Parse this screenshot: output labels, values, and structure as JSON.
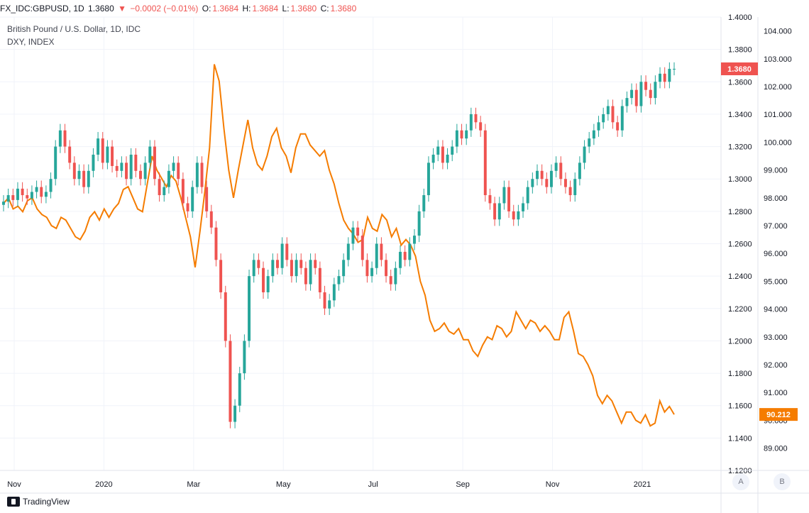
{
  "header": {
    "symbol": "FX_IDC:GBPUSD, 1D",
    "last": "1.3680",
    "arrow": "▼",
    "change": "−0.0002 (−0.01%)",
    "o_label": "O:",
    "o_value": "1.3684",
    "h_label": "H:",
    "h_value": "1.3684",
    "l_label": "L:",
    "l_value": "1.3680",
    "c_label": "C:",
    "c_value": "1.3680"
  },
  "legend": {
    "main": "British Pound / U.S. Dollar, 1D, IDC",
    "overlay": "DXY, INDEX"
  },
  "axis_buttons": {
    "a": "A",
    "b": "B"
  },
  "footer": {
    "brand": "TradingView"
  },
  "colors": {
    "up": "#26a69a",
    "down": "#ef5350",
    "dxy": "#f57c00",
    "grid": "#f0f3fa",
    "axis": "#787b86"
  },
  "chart_data": {
    "type": "line",
    "x_ticks": [
      "Nov",
      "2020",
      "Mar",
      "May",
      "Jul",
      "Sep",
      "Nov",
      "2021"
    ],
    "series": [
      {
        "name": "British Pound / U.S. Dollar, 1D, IDC",
        "style": "candlestick",
        "axis": "left-price-scale",
        "ylim": [
          1.12,
          1.4
        ],
        "y_ticks": [
          "1.4000",
          "1.3800",
          "1.3600",
          "1.3400",
          "1.3200",
          "1.3000",
          "1.2800",
          "1.2600",
          "1.2400",
          "1.2200",
          "1.2000",
          "1.1800",
          "1.1600",
          "1.1400",
          "1.1200"
        ],
        "values": [
          1.286,
          1.29,
          1.287,
          1.294,
          1.29,
          1.288,
          1.292,
          1.295,
          1.289,
          1.292,
          1.3,
          1.32,
          1.33,
          1.32,
          1.31,
          1.3,
          1.305,
          1.295,
          1.305,
          1.315,
          1.325,
          1.31,
          1.32,
          1.308,
          1.305,
          1.31,
          1.3,
          1.315,
          1.305,
          1.3,
          1.31,
          1.32,
          1.3,
          1.29,
          1.295,
          1.305,
          1.31,
          1.3,
          1.285,
          1.28,
          1.295,
          1.31,
          1.295,
          1.28,
          1.27,
          1.25,
          1.23,
          1.2,
          1.15,
          1.16,
          1.18,
          1.2,
          1.24,
          1.25,
          1.245,
          1.23,
          1.24,
          1.25,
          1.245,
          1.26,
          1.25,
          1.24,
          1.25,
          1.245,
          1.235,
          1.25,
          1.245,
          1.23,
          1.22,
          1.225,
          1.235,
          1.24,
          1.25,
          1.26,
          1.27,
          1.265,
          1.25,
          1.24,
          1.245,
          1.26,
          1.25,
          1.24,
          1.235,
          1.245,
          1.255,
          1.25,
          1.26,
          1.265,
          1.28,
          1.29,
          1.31,
          1.315,
          1.32,
          1.31,
          1.315,
          1.32,
          1.33,
          1.325,
          1.33,
          1.34,
          1.335,
          1.33,
          1.29,
          1.285,
          1.275,
          1.285,
          1.295,
          1.28,
          1.275,
          1.28,
          1.285,
          1.295,
          1.3,
          1.305,
          1.3,
          1.295,
          1.305,
          1.31,
          1.3,
          1.295,
          1.29,
          1.3,
          1.31,
          1.32,
          1.325,
          1.33,
          1.335,
          1.34,
          1.345,
          1.335,
          1.33,
          1.345,
          1.35,
          1.355,
          1.345,
          1.36,
          1.355,
          1.35,
          1.36,
          1.365,
          1.36,
          1.368,
          1.368
        ]
      },
      {
        "name": "DXY, INDEX",
        "style": "line",
        "axis": "right-scale",
        "ylim": [
          88.2,
          104.5
        ],
        "y_ticks": [
          "104.000",
          "103.000",
          "102.000",
          "101.000",
          "100.000",
          "99.000",
          "98.000",
          "97.000",
          "96.000",
          "95.000",
          "94.000",
          "93.000",
          "92.000",
          "91.000",
          "90.000",
          "89.000"
        ],
        "values": [
          97.8,
          98.0,
          97.6,
          97.7,
          97.5,
          97.9,
          98.0,
          97.6,
          97.4,
          97.3,
          97.0,
          96.9,
          97.3,
          97.2,
          96.9,
          96.6,
          96.5,
          96.8,
          97.3,
          97.5,
          97.2,
          97.6,
          97.3,
          97.6,
          97.8,
          98.3,
          98.4,
          98.0,
          97.6,
          97.5,
          98.5,
          99.5,
          99.0,
          98.7,
          98.4,
          98.8,
          98.6,
          98.0,
          97.3,
          96.6,
          95.5,
          96.8,
          98.2,
          99.8,
          102.8,
          102.2,
          100.5,
          99.0,
          98.0,
          99.0,
          99.9,
          100.8,
          99.8,
          99.2,
          99.0,
          99.5,
          100.2,
          100.5,
          99.8,
          99.5,
          98.9,
          99.8,
          100.3,
          100.3,
          99.9,
          99.7,
          99.5,
          99.7,
          99.0,
          98.5,
          97.8,
          97.2,
          96.9,
          96.7,
          96.4,
          96.5,
          97.3,
          96.9,
          96.8,
          97.4,
          97.2,
          96.6,
          96.9,
          96.3,
          96.5,
          96.3,
          95.9,
          95.0,
          94.5,
          93.6,
          93.2,
          93.3,
          93.5,
          93.2,
          93.1,
          93.3,
          92.9,
          92.9,
          92.5,
          92.3,
          92.7,
          93.0,
          92.9,
          93.4,
          93.3,
          93.0,
          93.2,
          93.9,
          93.6,
          93.3,
          93.6,
          93.5,
          93.2,
          93.4,
          93.2,
          92.9,
          92.9,
          93.7,
          93.9,
          93.2,
          92.4,
          92.3,
          92.0,
          91.6,
          90.9,
          90.6,
          90.9,
          90.7,
          90.3,
          89.9,
          90.3,
          90.3,
          90.0,
          89.9,
          90.2,
          89.8,
          89.9,
          90.7,
          90.3,
          90.5,
          90.212
        ]
      }
    ],
    "last_labels": {
      "left": "1.3680",
      "right": "90.212"
    }
  }
}
